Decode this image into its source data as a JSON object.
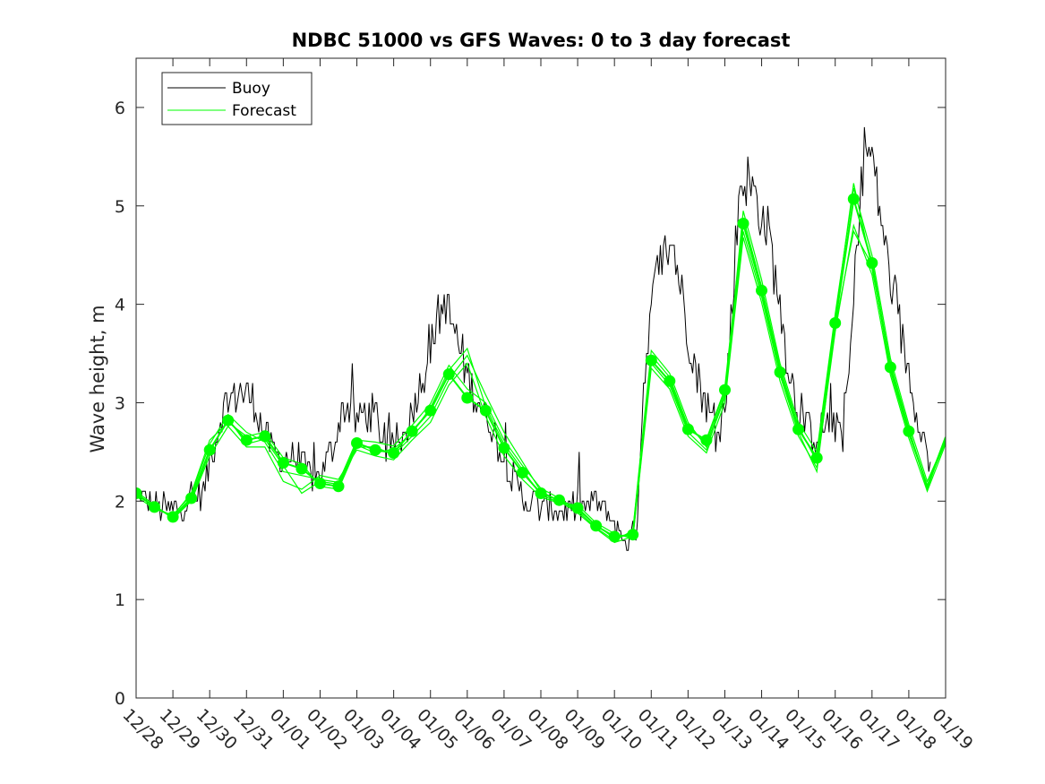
{
  "chart_data": {
    "type": "line",
    "title": "NDBC 51000 vs GFS Waves: 0 to 3 day forecast",
    "xlabel": "",
    "ylabel": "Wave height, m",
    "ylim": [
      0,
      6.5
    ],
    "xlim": [
      0,
      22
    ],
    "yticks": [
      0,
      1,
      2,
      3,
      4,
      5,
      6
    ],
    "xtick_labels": [
      "12/28",
      "12/29",
      "12/30",
      "12/31",
      "01/01",
      "01/02",
      "01/03",
      "01/04",
      "01/05",
      "01/06",
      "01/07",
      "01/08",
      "01/09",
      "01/10",
      "01/11",
      "01/12",
      "01/13",
      "01/14",
      "01/15",
      "01/16",
      "01/17",
      "01/18",
      "01/19"
    ],
    "legend": {
      "position": "top-left",
      "entries": [
        "Buoy",
        "Forecast"
      ]
    },
    "colors": {
      "buoy": "#000000",
      "forecast": "#00ff00"
    },
    "buoy_anchors": {
      "x": [
        0.0,
        0.5,
        1.0,
        1.5,
        1.8,
        2.2,
        2.4,
        2.6,
        2.8,
        3.0,
        3.2,
        3.4,
        3.6,
        3.8,
        4.0,
        4.3,
        4.6,
        5.0,
        5.3,
        5.6,
        5.8,
        6.0,
        6.2,
        6.5,
        6.8,
        7.2,
        7.5,
        7.8,
        8.0,
        8.2,
        8.4,
        8.6,
        8.8,
        9.0,
        9.2,
        9.4,
        9.6,
        9.8,
        10.0,
        10.3,
        10.6,
        11.0,
        11.5,
        12.0,
        12.5,
        13.0,
        13.2,
        13.4,
        13.6,
        13.8,
        14.0,
        14.2,
        14.4,
        14.6,
        14.8,
        15.0,
        15.3,
        15.6,
        15.8,
        16.0,
        16.2,
        16.4,
        16.6,
        16.8,
        17.0,
        17.2,
        17.4,
        17.6,
        17.8,
        18.0,
        18.3,
        18.6,
        18.9,
        19.2,
        19.4,
        19.6,
        19.8,
        20.0,
        20.2,
        20.4,
        20.6,
        20.8,
        21.0,
        21.3,
        21.6
      ],
      "y": [
        2.1,
        1.95,
        1.9,
        2.0,
        2.1,
        2.7,
        3.0,
        3.05,
        3.1,
        3.1,
        3.0,
        2.8,
        2.6,
        2.5,
        2.45,
        2.4,
        2.3,
        2.25,
        2.5,
        2.9,
        3.0,
        2.8,
        2.9,
        2.9,
        2.5,
        2.6,
        2.9,
        3.3,
        3.6,
        3.85,
        4.0,
        3.8,
        3.55,
        3.3,
        3.1,
        2.95,
        2.8,
        2.6,
        2.4,
        2.2,
        2.0,
        1.95,
        1.9,
        1.95,
        2.0,
        1.8,
        1.65,
        1.6,
        1.75,
        3.2,
        4.0,
        4.4,
        4.5,
        4.6,
        4.2,
        3.7,
        3.2,
        2.9,
        2.75,
        2.9,
        4.0,
        5.2,
        5.3,
        5.1,
        4.9,
        4.7,
        4.2,
        3.7,
        3.2,
        2.9,
        2.7,
        2.7,
        2.8,
        2.7,
        3.4,
        4.7,
        5.6,
        5.5,
        5.0,
        4.5,
        4.0,
        3.7,
        3.3,
        2.8,
        2.3
      ]
    },
    "forecast_series": [
      {
        "name": "Forecast",
        "x": [
          0.0,
          0.5,
          1.0,
          1.5,
          2.0,
          2.5,
          3.0,
          3.5,
          4.0,
          4.5,
          5.0,
          5.5,
          6.0,
          6.5,
          7.0,
          7.5,
          8.0,
          8.5,
          9.0,
          9.5,
          10.0,
          10.5,
          11.0,
          11.5,
          12.0,
          12.5,
          13.0,
          13.5,
          14.0,
          14.5,
          15.0,
          15.5,
          16.0,
          16.5,
          17.0,
          17.5,
          18.0,
          18.5,
          19.0,
          19.5,
          20.0,
          20.5,
          21.0,
          21.5,
          22.0
        ],
        "values": [
          2.08,
          1.94,
          1.84,
          2.03,
          2.52,
          2.82,
          2.62,
          2.66,
          2.39,
          2.33,
          2.18,
          2.15,
          2.59,
          2.52,
          2.49,
          2.71,
          2.92,
          3.29,
          3.05,
          2.92,
          2.54,
          2.29,
          2.08,
          2.01,
          1.93,
          1.75,
          1.64,
          1.66,
          3.43,
          3.22,
          2.73,
          2.62,
          3.13,
          4.82,
          4.14,
          3.31,
          2.73,
          2.44,
          3.81,
          5.07,
          4.42,
          3.36,
          2.71,
          2.15,
          2.65
        ]
      },
      {
        "name": "Forecast",
        "x": [
          0.0,
          0.5,
          1.0,
          1.5,
          2.0,
          2.5,
          3.0,
          3.5,
          4.0,
          4.5,
          5.0,
          5.5,
          6.0,
          6.5,
          7.0,
          7.5,
          8.0,
          8.5,
          9.0,
          9.5,
          10.0,
          10.5,
          11.0,
          11.5,
          12.0,
          12.5,
          13.0,
          13.5,
          14.0,
          14.5,
          15.0,
          15.5,
          16.0,
          16.5,
          17.0,
          17.5,
          18.0,
          18.5,
          19.0,
          19.5,
          20.0,
          20.5,
          21.0,
          21.5,
          22.0
        ],
        "values": [
          2.05,
          1.92,
          1.86,
          2.06,
          2.58,
          2.88,
          2.7,
          2.6,
          2.3,
          2.26,
          2.22,
          2.19,
          2.62,
          2.6,
          2.56,
          2.77,
          2.99,
          3.38,
          3.14,
          3.0,
          2.62,
          2.36,
          2.13,
          2.03,
          1.9,
          1.73,
          1.6,
          1.7,
          3.53,
          3.3,
          2.8,
          2.55,
          3.05,
          4.95,
          4.25,
          3.4,
          2.8,
          2.5,
          3.9,
          5.18,
          4.5,
          3.45,
          2.78,
          2.2,
          2.62
        ]
      },
      {
        "name": "Forecast",
        "x": [
          0.0,
          0.5,
          1.0,
          1.5,
          2.0,
          2.5,
          3.0,
          3.5,
          4.0,
          4.5,
          5.0,
          5.5,
          6.0,
          6.5,
          7.0,
          7.5,
          8.0,
          8.5,
          9.0,
          9.5,
          10.0,
          10.5,
          11.0,
          11.5,
          12.0,
          12.5,
          13.0,
          13.5,
          14.0,
          14.5,
          15.0,
          15.5,
          16.0,
          16.5,
          17.0,
          17.5,
          18.0,
          18.5,
          19.0,
          19.5,
          20.0,
          20.5,
          21.0,
          21.5,
          22.0
        ],
        "values": [
          2.1,
          1.96,
          1.82,
          2.0,
          2.46,
          2.76,
          2.55,
          2.55,
          2.2,
          2.12,
          2.26,
          2.22,
          2.52,
          2.46,
          2.42,
          2.62,
          2.8,
          3.18,
          3.4,
          2.86,
          2.46,
          2.22,
          2.04,
          1.98,
          1.96,
          1.78,
          1.67,
          1.62,
          3.35,
          3.14,
          2.66,
          2.49,
          3.0,
          4.68,
          4.02,
          3.22,
          2.66,
          2.34,
          3.72,
          4.8,
          4.3,
          3.28,
          2.64,
          2.1,
          2.58
        ]
      },
      {
        "name": "Forecast",
        "x": [
          0.0,
          0.5,
          1.0,
          1.5,
          2.0,
          2.5,
          3.0,
          3.5,
          4.0,
          4.5,
          5.0,
          5.5,
          6.0,
          6.5,
          7.0,
          7.5,
          8.0,
          8.5,
          9.0,
          9.5,
          10.0,
          10.5,
          11.0,
          11.5,
          12.0,
          12.5,
          13.0,
          13.5,
          14.0,
          14.5,
          15.0,
          15.5,
          16.0,
          16.5,
          17.0,
          17.5,
          18.0,
          18.5,
          19.0,
          19.5,
          20.0,
          20.5,
          21.0,
          21.5,
          22.0
        ],
        "values": [
          2.08,
          1.93,
          1.85,
          2.08,
          2.62,
          2.8,
          2.66,
          2.7,
          2.44,
          2.38,
          2.15,
          2.12,
          2.55,
          2.55,
          2.47,
          2.66,
          2.86,
          3.24,
          3.48,
          3.08,
          2.7,
          2.4,
          2.1,
          2.0,
          1.88,
          1.72,
          1.58,
          1.64,
          3.48,
          3.26,
          2.76,
          2.58,
          3.08,
          4.88,
          4.18,
          3.36,
          2.76,
          2.4,
          3.86,
          5.23,
          4.36,
          3.4,
          2.74,
          2.12,
          2.65
        ]
      },
      {
        "name": "Forecast",
        "x": [
          0.0,
          0.5,
          1.0,
          1.5,
          2.0,
          2.5,
          3.0,
          3.5,
          4.0,
          4.5,
          5.0,
          5.5,
          6.0,
          6.5,
          7.0,
          7.5,
          8.0,
          8.5,
          9.0,
          9.5,
          10.0,
          10.5,
          11.0,
          11.5,
          12.0,
          12.5,
          13.0,
          13.5,
          14.0,
          14.5,
          15.0,
          15.5,
          16.0,
          16.5,
          17.0,
          17.5,
          18.0,
          18.5,
          19.0,
          19.5,
          20.0,
          20.5,
          21.0,
          21.5,
          22.0
        ],
        "values": [
          2.06,
          1.95,
          1.83,
          2.01,
          2.5,
          2.84,
          2.58,
          2.63,
          2.36,
          2.08,
          2.2,
          2.17,
          2.57,
          2.49,
          2.53,
          2.69,
          2.95,
          3.33,
          3.55,
          2.96,
          2.58,
          2.32,
          2.06,
          1.99,
          1.91,
          1.76,
          1.62,
          1.68,
          3.4,
          3.18,
          2.7,
          2.52,
          3.1,
          4.74,
          4.08,
          3.28,
          2.7,
          2.3,
          3.78,
          4.74,
          4.4,
          3.32,
          2.68,
          2.16,
          2.6
        ]
      }
    ],
    "forecast_markers": {
      "x": [
        0.0,
        0.5,
        1.0,
        1.5,
        2.0,
        2.5,
        3.0,
        3.5,
        4.0,
        4.5,
        5.0,
        5.5,
        6.0,
        6.5,
        7.0,
        7.5,
        8.0,
        8.5,
        9.0,
        9.5,
        10.0,
        10.5,
        11.0,
        11.5,
        12.0,
        12.5,
        13.0,
        13.5,
        14.0,
        14.5,
        15.0,
        15.5,
        16.0,
        16.5,
        17.0,
        17.5,
        18.0,
        18.5,
        19.0,
        19.5,
        20.0,
        20.5,
        21.0
      ],
      "values": [
        2.08,
        1.94,
        1.84,
        2.03,
        2.52,
        2.82,
        2.62,
        2.66,
        2.39,
        2.33,
        2.18,
        2.15,
        2.59,
        2.52,
        2.49,
        2.71,
        2.92,
        3.29,
        3.05,
        2.92,
        2.54,
        2.29,
        2.08,
        2.01,
        1.93,
        1.75,
        1.64,
        1.66,
        3.43,
        3.22,
        2.73,
        2.62,
        3.13,
        4.82,
        4.14,
        3.31,
        2.73,
        2.44,
        3.81,
        5.07,
        4.42,
        3.36,
        2.71
      ]
    }
  }
}
